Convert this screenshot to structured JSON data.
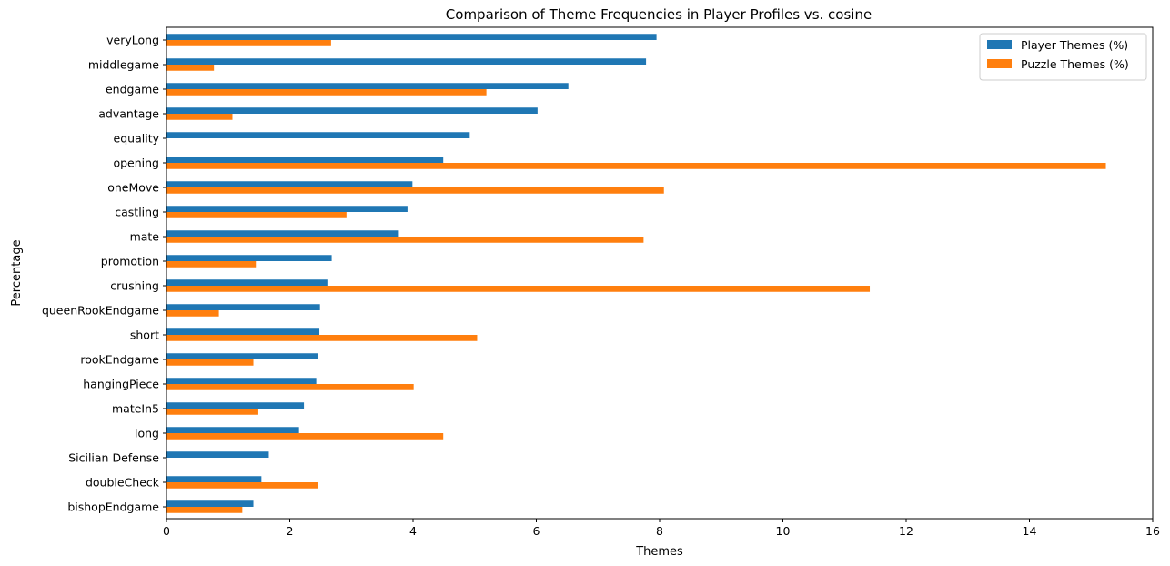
{
  "chart_data": {
    "type": "bar",
    "orientation": "horizontal",
    "title": "Comparison of Theme Frequencies in Player Profiles vs. cosine",
    "xlabel": "Themes",
    "ylabel": "Percentage",
    "xlim": [
      0,
      16
    ],
    "xticks": [
      0,
      2,
      4,
      6,
      8,
      10,
      12,
      14,
      16
    ],
    "grid": false,
    "legend_position": "top-right",
    "categories": [
      "veryLong",
      "middlegame",
      "endgame",
      "advantage",
      "equality",
      "opening",
      "oneMove",
      "castling",
      "mate",
      "promotion",
      "crushing",
      "queenRookEndgame",
      "short",
      "rookEndgame",
      "hangingPiece",
      "mateIn5",
      "long",
      "Sicilian Defense",
      "doubleCheck",
      "bishopEndgame"
    ],
    "series": [
      {
        "name": "Player Themes (%)",
        "color": "#1f77b4",
        "values": [
          7.95,
          7.78,
          6.52,
          6.02,
          4.92,
          4.49,
          3.99,
          3.91,
          3.77,
          2.68,
          2.61,
          2.49,
          2.48,
          2.45,
          2.43,
          2.23,
          2.15,
          1.66,
          1.54,
          1.41
        ]
      },
      {
        "name": "Puzzle Themes (%)",
        "color": "#ff7f0e",
        "values": [
          2.67,
          0.77,
          5.19,
          1.07,
          0.0,
          15.24,
          8.07,
          2.92,
          7.74,
          1.45,
          11.41,
          0.85,
          5.04,
          1.41,
          4.01,
          1.49,
          4.49,
          0.0,
          2.45,
          1.23
        ]
      }
    ]
  }
}
